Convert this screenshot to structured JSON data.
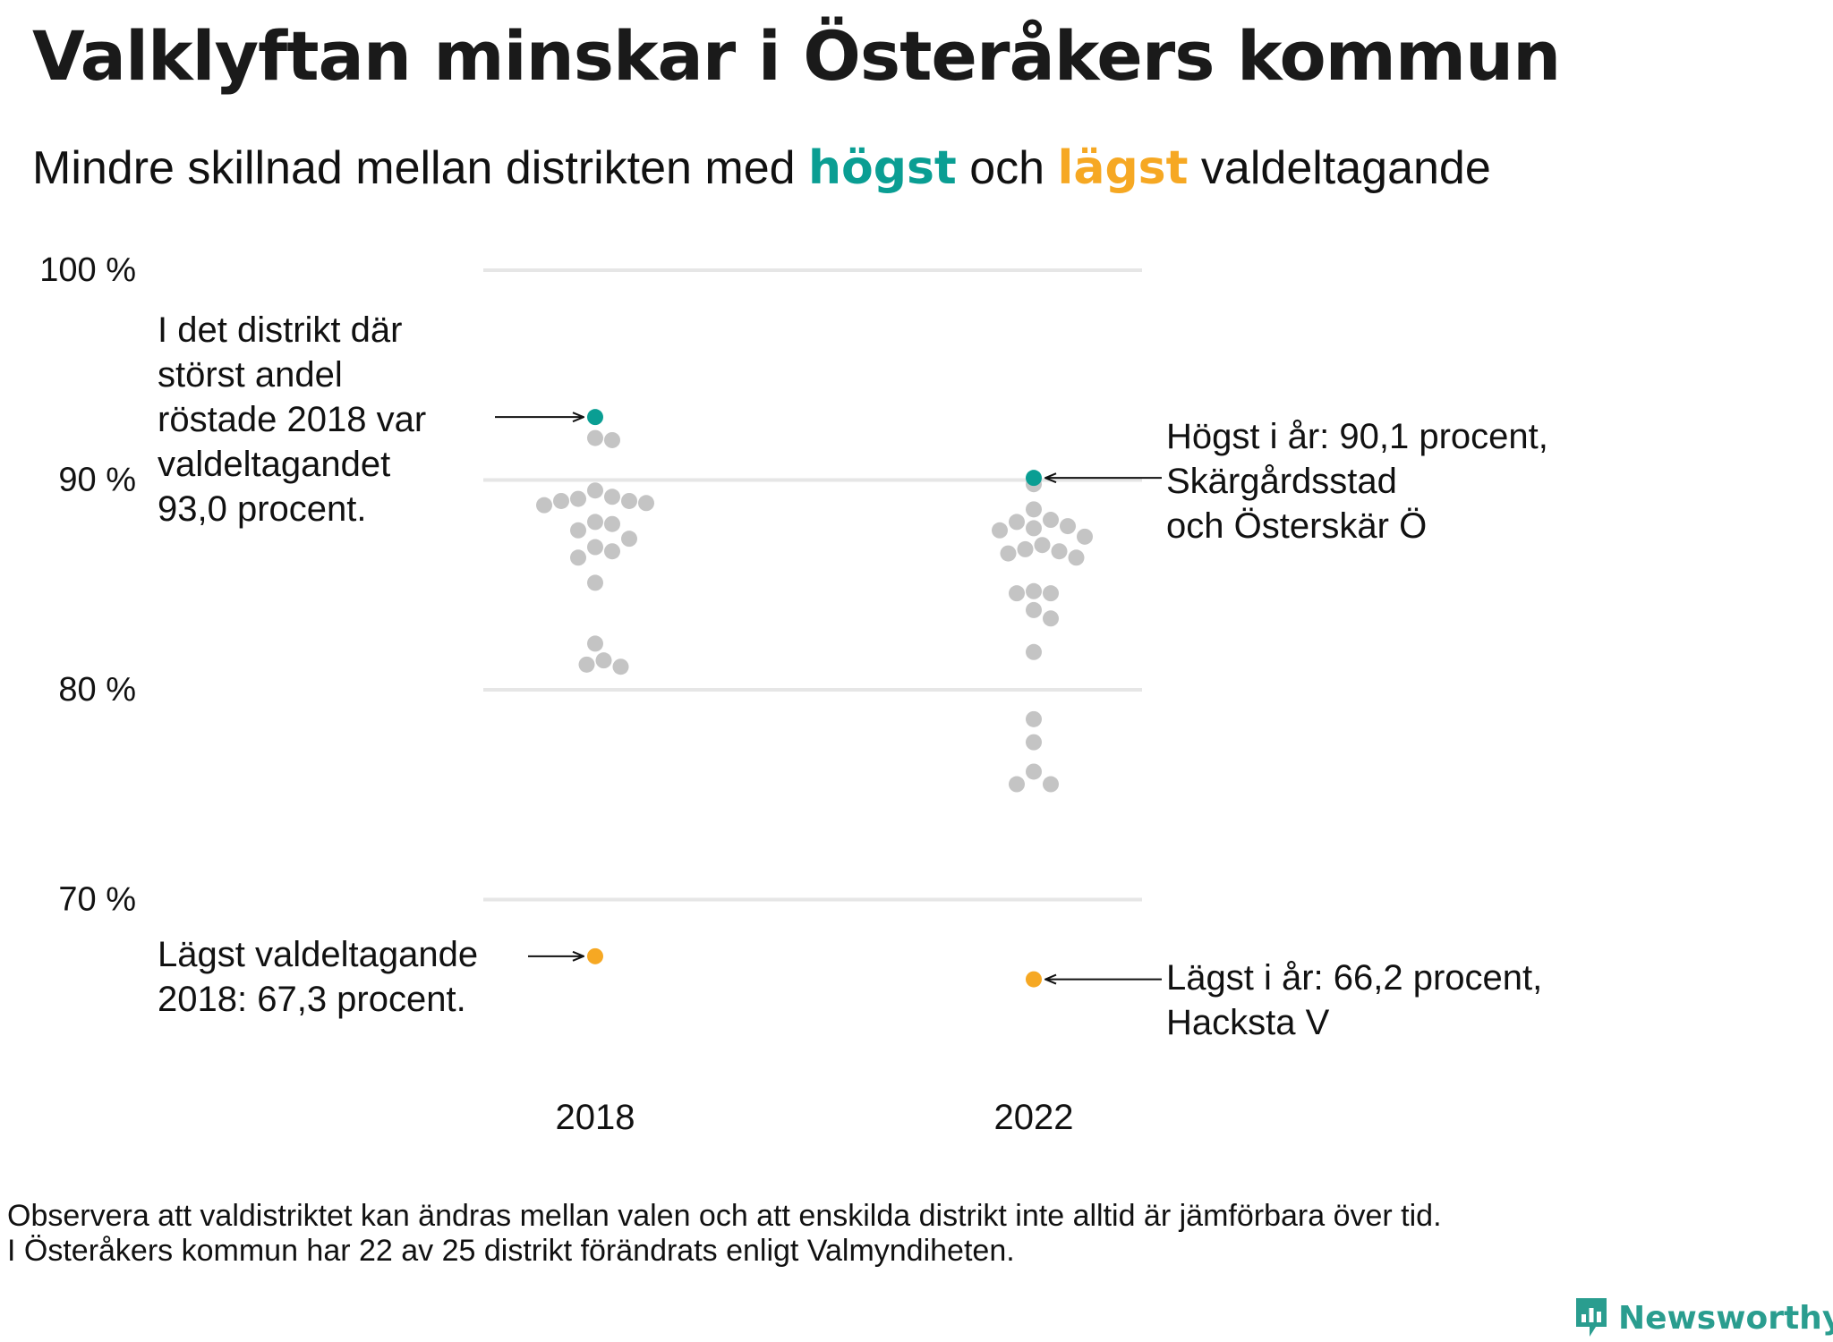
{
  "title": "Valklyftan minskar i Österåkers kommun",
  "subtitle": {
    "before": "Mindre  skillnad  mellan  distrikten   med ",
    "highest": "högst",
    "middle": " och ",
    "lowest": "lägst",
    "after": " valdeltagande"
  },
  "colors": {
    "highest": "#0a9e93",
    "lowest": "#f6a823",
    "other": "#c4c4c4",
    "grid": "#e6e6e6"
  },
  "chart_data": {
    "type": "scatter",
    "subtype": "beeswarm",
    "xlabel": "",
    "ylabel": "",
    "ylim": [
      65,
      100
    ],
    "y_ticks": [
      {
        "value": 70,
        "label": "70 %"
      },
      {
        "value": 80,
        "label": "80 %"
      },
      {
        "value": 90,
        "label": "90 %"
      },
      {
        "value": 100,
        "label": "100 %"
      }
    ],
    "grid": true,
    "categories": [
      "2018",
      "2022"
    ],
    "series": [
      {
        "category": "2018",
        "highest": 93.0,
        "lowest": 67.3,
        "values": [
          93.0,
          92.0,
          91.9,
          89.5,
          89.2,
          89.1,
          89.0,
          89.0,
          88.9,
          88.8,
          88.0,
          87.9,
          87.6,
          87.2,
          86.8,
          86.6,
          86.3,
          85.1,
          82.2,
          81.4,
          81.2,
          81.1,
          67.3
        ]
      },
      {
        "category": "2022",
        "highest": 90.1,
        "lowest": 66.2,
        "values": [
          90.1,
          89.8,
          88.6,
          88.1,
          88.0,
          87.8,
          87.7,
          87.6,
          87.3,
          86.9,
          86.7,
          86.6,
          86.5,
          86.3,
          84.7,
          84.6,
          84.6,
          83.8,
          83.4,
          81.8,
          78.6,
          77.5,
          76.1,
          75.5,
          75.5,
          66.2
        ]
      }
    ],
    "annotations": {
      "high_2018": [
        "I det distrikt där",
        "störst andel",
        "röstade 2018 var",
        "valdeltagandet",
        "93,0 procent."
      ],
      "high_2022": [
        "Högst i år: 90,1 procent,",
        "Skärgårdsstad",
        "och Österskär Ö"
      ],
      "low_2018": [
        "Lägst valdeltagande",
        "2018: 67,3 procent."
      ],
      "low_2022": [
        "Lägst i år: 66,2 procent,",
        "Hacksta V"
      ]
    }
  },
  "footnote": [
    "Observera att valdistriktet kan ändras mellan valen och att enskilda distrikt inte alltid är jämförbara över tid.",
    "I Österåkers kommun har 22 av 25 distrikt förändrats enligt Valmyndiheten."
  ],
  "brand": {
    "name": "Newsworthy",
    "icon": "bar-chart-speech-bubble-icon"
  }
}
